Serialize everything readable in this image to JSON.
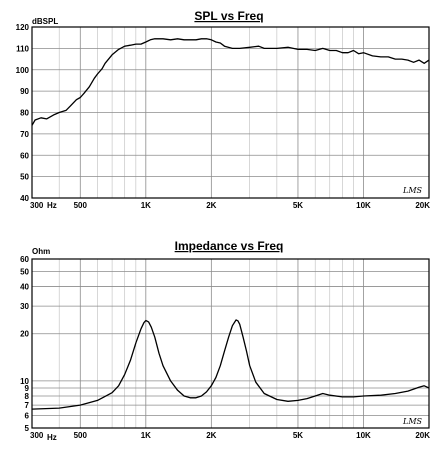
{
  "chart_data": [
    {
      "type": "line",
      "title": "SPL vs Freq",
      "ylabel": "dBSPL",
      "xlabel": "Hz",
      "xscale": "log",
      "xlim": [
        300,
        20000
      ],
      "ylim": [
        40,
        120
      ],
      "grid": true,
      "x_ticks": [
        300,
        500,
        1000,
        2000,
        5000,
        10000,
        20000
      ],
      "x_tick_labels": [
        "300",
        "500",
        "1K",
        "2K",
        "5K",
        "10K",
        "20K"
      ],
      "y_ticks": [
        40,
        50,
        60,
        70,
        80,
        90,
        100,
        110,
        120
      ],
      "y_tick_labels": [
        "40",
        "50",
        "60",
        "70",
        "80",
        "90",
        "100",
        "110",
        "120"
      ],
      "watermark": "LMS",
      "series": [
        {
          "x": [
            300,
            310,
            330,
            350,
            380,
            400,
            430,
            450,
            480,
            500,
            520,
            550,
            580,
            600,
            630,
            650,
            700,
            750,
            800,
            850,
            900,
            950,
            1000,
            1050,
            1100,
            1200,
            1300,
            1400,
            1500,
            1600,
            1700,
            1800,
            1900,
            2000,
            2100,
            2200,
            2300,
            2500,
            2700,
            3000,
            3300,
            3500,
            4000,
            4500,
            5000,
            5500,
            6000,
            6500,
            7000,
            7500,
            8000,
            8500,
            9000,
            9500,
            10000,
            11000,
            12000,
            13000,
            14000,
            15000,
            16000,
            17000,
            18000,
            19000,
            20000
          ],
          "y": [
            74,
            76.5,
            77.5,
            77,
            79,
            80,
            81,
            83,
            86,
            87,
            89,
            92,
            96,
            98,
            100.5,
            103,
            107,
            109.5,
            111,
            111.5,
            112,
            112,
            113,
            114,
            114.5,
            114.5,
            114,
            114.5,
            114,
            114,
            114,
            114.5,
            114.5,
            114,
            113,
            112.5,
            111,
            110,
            110,
            110.5,
            111,
            110,
            110,
            110.5,
            109.5,
            109.5,
            109,
            110,
            109,
            109,
            108,
            108,
            109,
            107.5,
            108,
            106.5,
            106,
            106,
            105,
            105,
            104.5,
            103.5,
            104.5,
            103,
            104.5
          ]
        }
      ]
    },
    {
      "type": "line",
      "title": "Impedance vs Freq",
      "ylabel": "Ohm",
      "xlabel": "Hz",
      "xscale": "log",
      "yscale": "log",
      "xlim": [
        300,
        20000
      ],
      "ylim": [
        5,
        60
      ],
      "grid": true,
      "x_ticks": [
        300,
        500,
        1000,
        2000,
        5000,
        10000,
        20000
      ],
      "x_tick_labels": [
        "300",
        "500",
        "1K",
        "2K",
        "5K",
        "10K",
        "20K"
      ],
      "y_ticks": [
        5,
        6,
        7,
        8,
        9,
        10,
        20,
        30,
        40,
        50,
        60
      ],
      "y_tick_labels": [
        "5",
        "6",
        "7",
        "8",
        "9",
        "10",
        "20",
        "30",
        "40",
        "50",
        "60"
      ],
      "watermark": "LMS",
      "series": [
        {
          "x": [
            300,
            400,
            500,
            600,
            700,
            750,
            800,
            850,
            900,
            950,
            980,
            1000,
            1030,
            1060,
            1100,
            1150,
            1200,
            1300,
            1400,
            1500,
            1600,
            1700,
            1800,
            1900,
            2000,
            2100,
            2200,
            2300,
            2400,
            2500,
            2600,
            2650,
            2700,
            2800,
            2900,
            3000,
            3200,
            3500,
            4000,
            4500,
            5000,
            5500,
            6000,
            6500,
            7000,
            8000,
            9000,
            10000,
            12000,
            14000,
            16000,
            18000,
            19000,
            20000
          ],
          "y": [
            6.6,
            6.7,
            7.0,
            7.5,
            8.4,
            9.3,
            11,
            13.5,
            17.5,
            21.5,
            23.5,
            24.3,
            23.8,
            22,
            19,
            15,
            12.5,
            10,
            8.7,
            8.0,
            7.8,
            7.8,
            8.0,
            8.5,
            9.3,
            10.5,
            12.5,
            15.5,
            19,
            22.5,
            24.5,
            24.2,
            23,
            19,
            15.5,
            12.5,
            9.8,
            8.3,
            7.6,
            7.4,
            7.5,
            7.7,
            8.0,
            8.3,
            8.1,
            7.9,
            7.9,
            8.0,
            8.1,
            8.3,
            8.6,
            9.1,
            9.3,
            9.0
          ]
        }
      ]
    }
  ]
}
